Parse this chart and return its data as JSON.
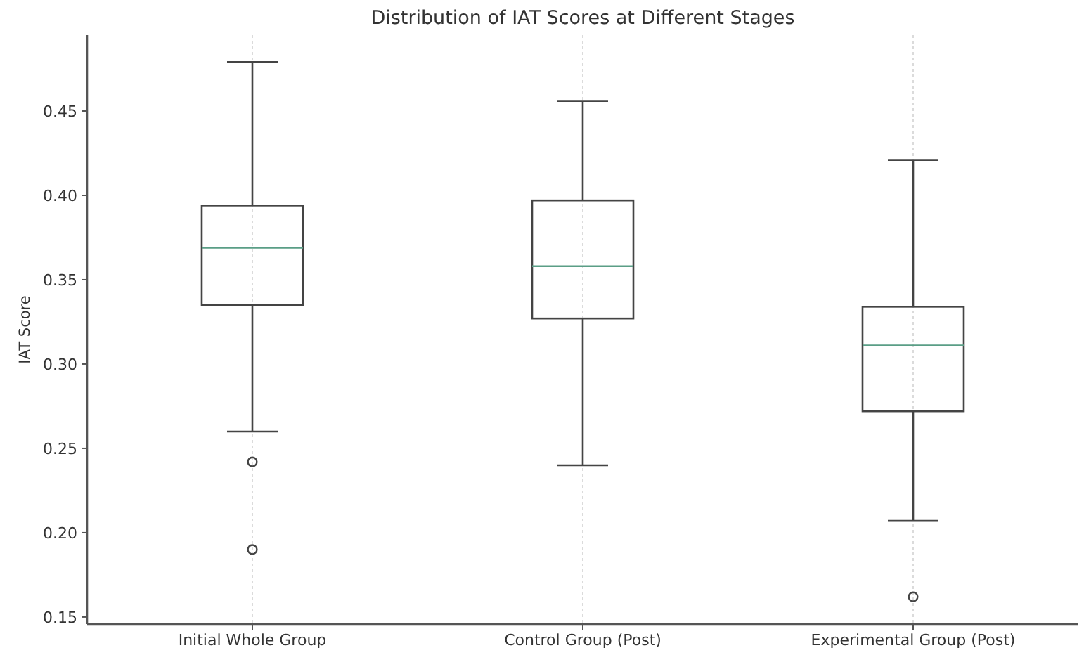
{
  "chart_data": {
    "type": "box",
    "title": "Distribution of IAT Scores at Different Stages",
    "ylabel": "IAT Score",
    "categories": [
      "Initial Whole Group",
      "Control Group (Post)",
      "Experimental Group (Post)"
    ],
    "boxes": [
      {
        "low": 0.26,
        "q1": 0.335,
        "median": 0.369,
        "q3": 0.394,
        "high": 0.479,
        "outliers": [
          0.242,
          0.19
        ]
      },
      {
        "low": 0.24,
        "q1": 0.327,
        "median": 0.358,
        "q3": 0.397,
        "high": 0.456
      },
      {
        "low": 0.207,
        "q1": 0.272,
        "median": 0.311,
        "q3": 0.334,
        "high": 0.421,
        "outliers": [
          0.162
        ]
      }
    ],
    "color": "#444444",
    "ylim": [
      0.1458,
      0.495
    ],
    "yticks": [
      0.15,
      {
        "value": 0.2,
        "label": "0.20"
      },
      0.25,
      {
        "value": 0.3,
        "label": "0.30"
      },
      0.35,
      {
        "value": 0.4,
        "label": "0.40"
      },
      0.45
    ],
    "grid": "x"
  }
}
